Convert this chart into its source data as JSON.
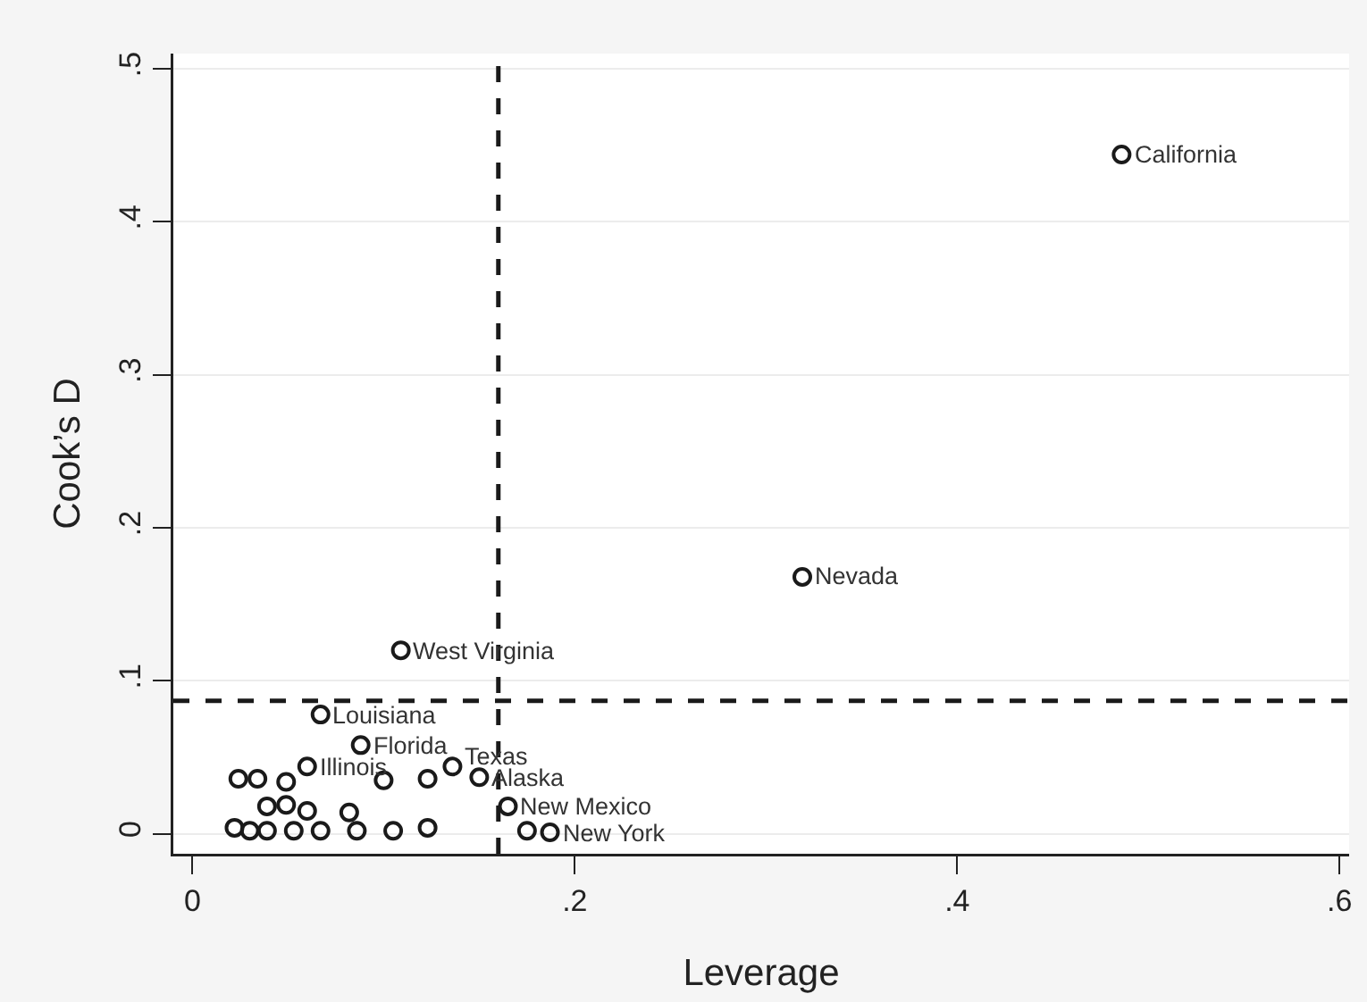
{
  "chart_data": {
    "type": "scatter",
    "xlabel": "Leverage",
    "ylabel": "Cook’s D",
    "x": [
      0.486,
      0.319,
      0.109,
      0.067,
      0.088,
      0.06,
      0.136,
      0.15,
      0.165,
      0.187,
      0.175,
      0.024,
      0.034,
      0.049,
      0.039,
      0.049,
      0.06,
      0.022,
      0.03,
      0.039,
      0.053,
      0.067,
      0.086,
      0.105,
      0.123,
      0.082,
      0.1,
      0.123
    ],
    "series": [
      {
        "color": "#1a1a1a",
        "values": [
          0.444,
          0.168,
          0.12,
          0.078,
          0.058,
          0.044,
          0.044,
          0.037,
          0.018,
          0.001,
          0.002,
          0.036,
          0.036,
          0.034,
          0.018,
          0.019,
          0.015,
          0.004,
          0.002,
          0.002,
          0.002,
          0.002,
          0.002,
          0.002,
          0.004,
          0.014,
          0.035,
          0.036
        ],
        "value_labels": [
          "California",
          "Nevada",
          "West Virginia",
          "Louisiana",
          "Florida",
          "Illinois",
          "Texas",
          "Alaska",
          "New Mexico",
          "New York",
          null,
          null,
          null,
          null,
          null,
          null,
          null,
          null,
          null,
          null,
          null,
          null,
          null,
          null,
          null,
          null,
          null,
          null
        ]
      }
    ],
    "xlim": [
      -0.01,
      0.605
    ],
    "xticks": [
      {
        "value": 0,
        "label": "0"
      },
      {
        "value": 0.2,
        "label": ".2"
      },
      {
        "value": 0.4,
        "label": ".4"
      },
      {
        "value": 0.6,
        "label": ".6"
      }
    ],
    "ylim": [
      -0.013,
      0.51
    ],
    "yticks": [
      {
        "value": 0,
        "label": "0"
      },
      {
        "value": 0.1,
        "label": ".1"
      },
      {
        "value": 0.2,
        "label": ".2"
      },
      {
        "value": 0.3,
        "label": ".3"
      },
      {
        "value": 0.4,
        "label": ".4"
      },
      {
        "value": 0.5,
        "label": ".5"
      }
    ],
    "ref_lines": [
      {
        "axis": "x",
        "value": 0.16,
        "line_style": "dashed",
        "color": "#1a1a1a"
      },
      {
        "axis": "y",
        "value": 0.087,
        "line_style": "dashed",
        "color": "#1a1a1a"
      }
    ],
    "grid": "y",
    "marker": "circle"
  }
}
